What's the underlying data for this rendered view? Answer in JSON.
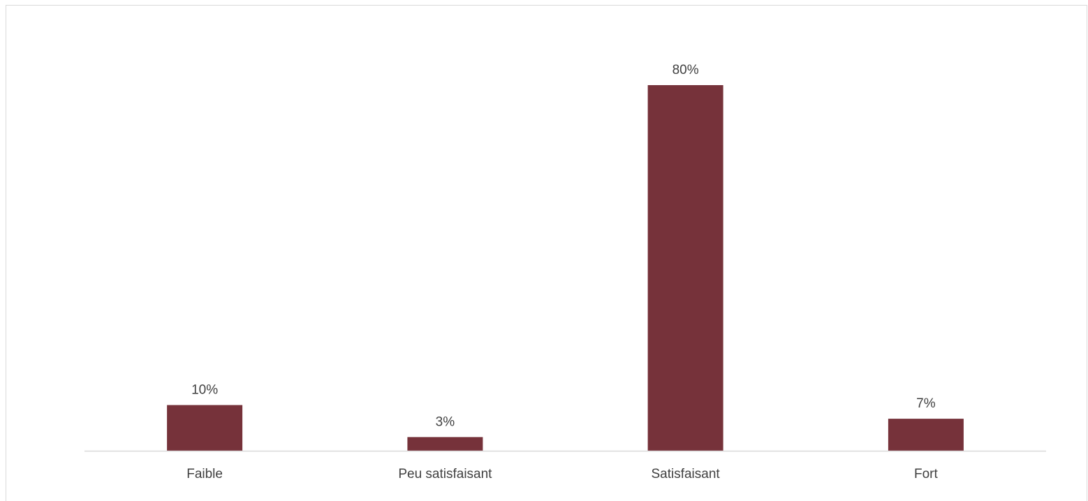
{
  "chart_data": {
    "type": "bar",
    "categories": [
      "Faible",
      "Peu satisfaisant",
      "Satisfaisant",
      "Fort"
    ],
    "values": [
      10,
      3,
      80,
      7
    ],
    "value_labels": [
      "10%",
      "3%",
      "80%",
      "7%"
    ],
    "unit": "%",
    "title": "",
    "xlabel": "",
    "ylabel": "",
    "ylim": [
      0,
      80
    ],
    "grid": false,
    "legend": "none",
    "bar_color": "#76323a",
    "axis_color": "#d9d9d9",
    "text_color": "#404040"
  }
}
